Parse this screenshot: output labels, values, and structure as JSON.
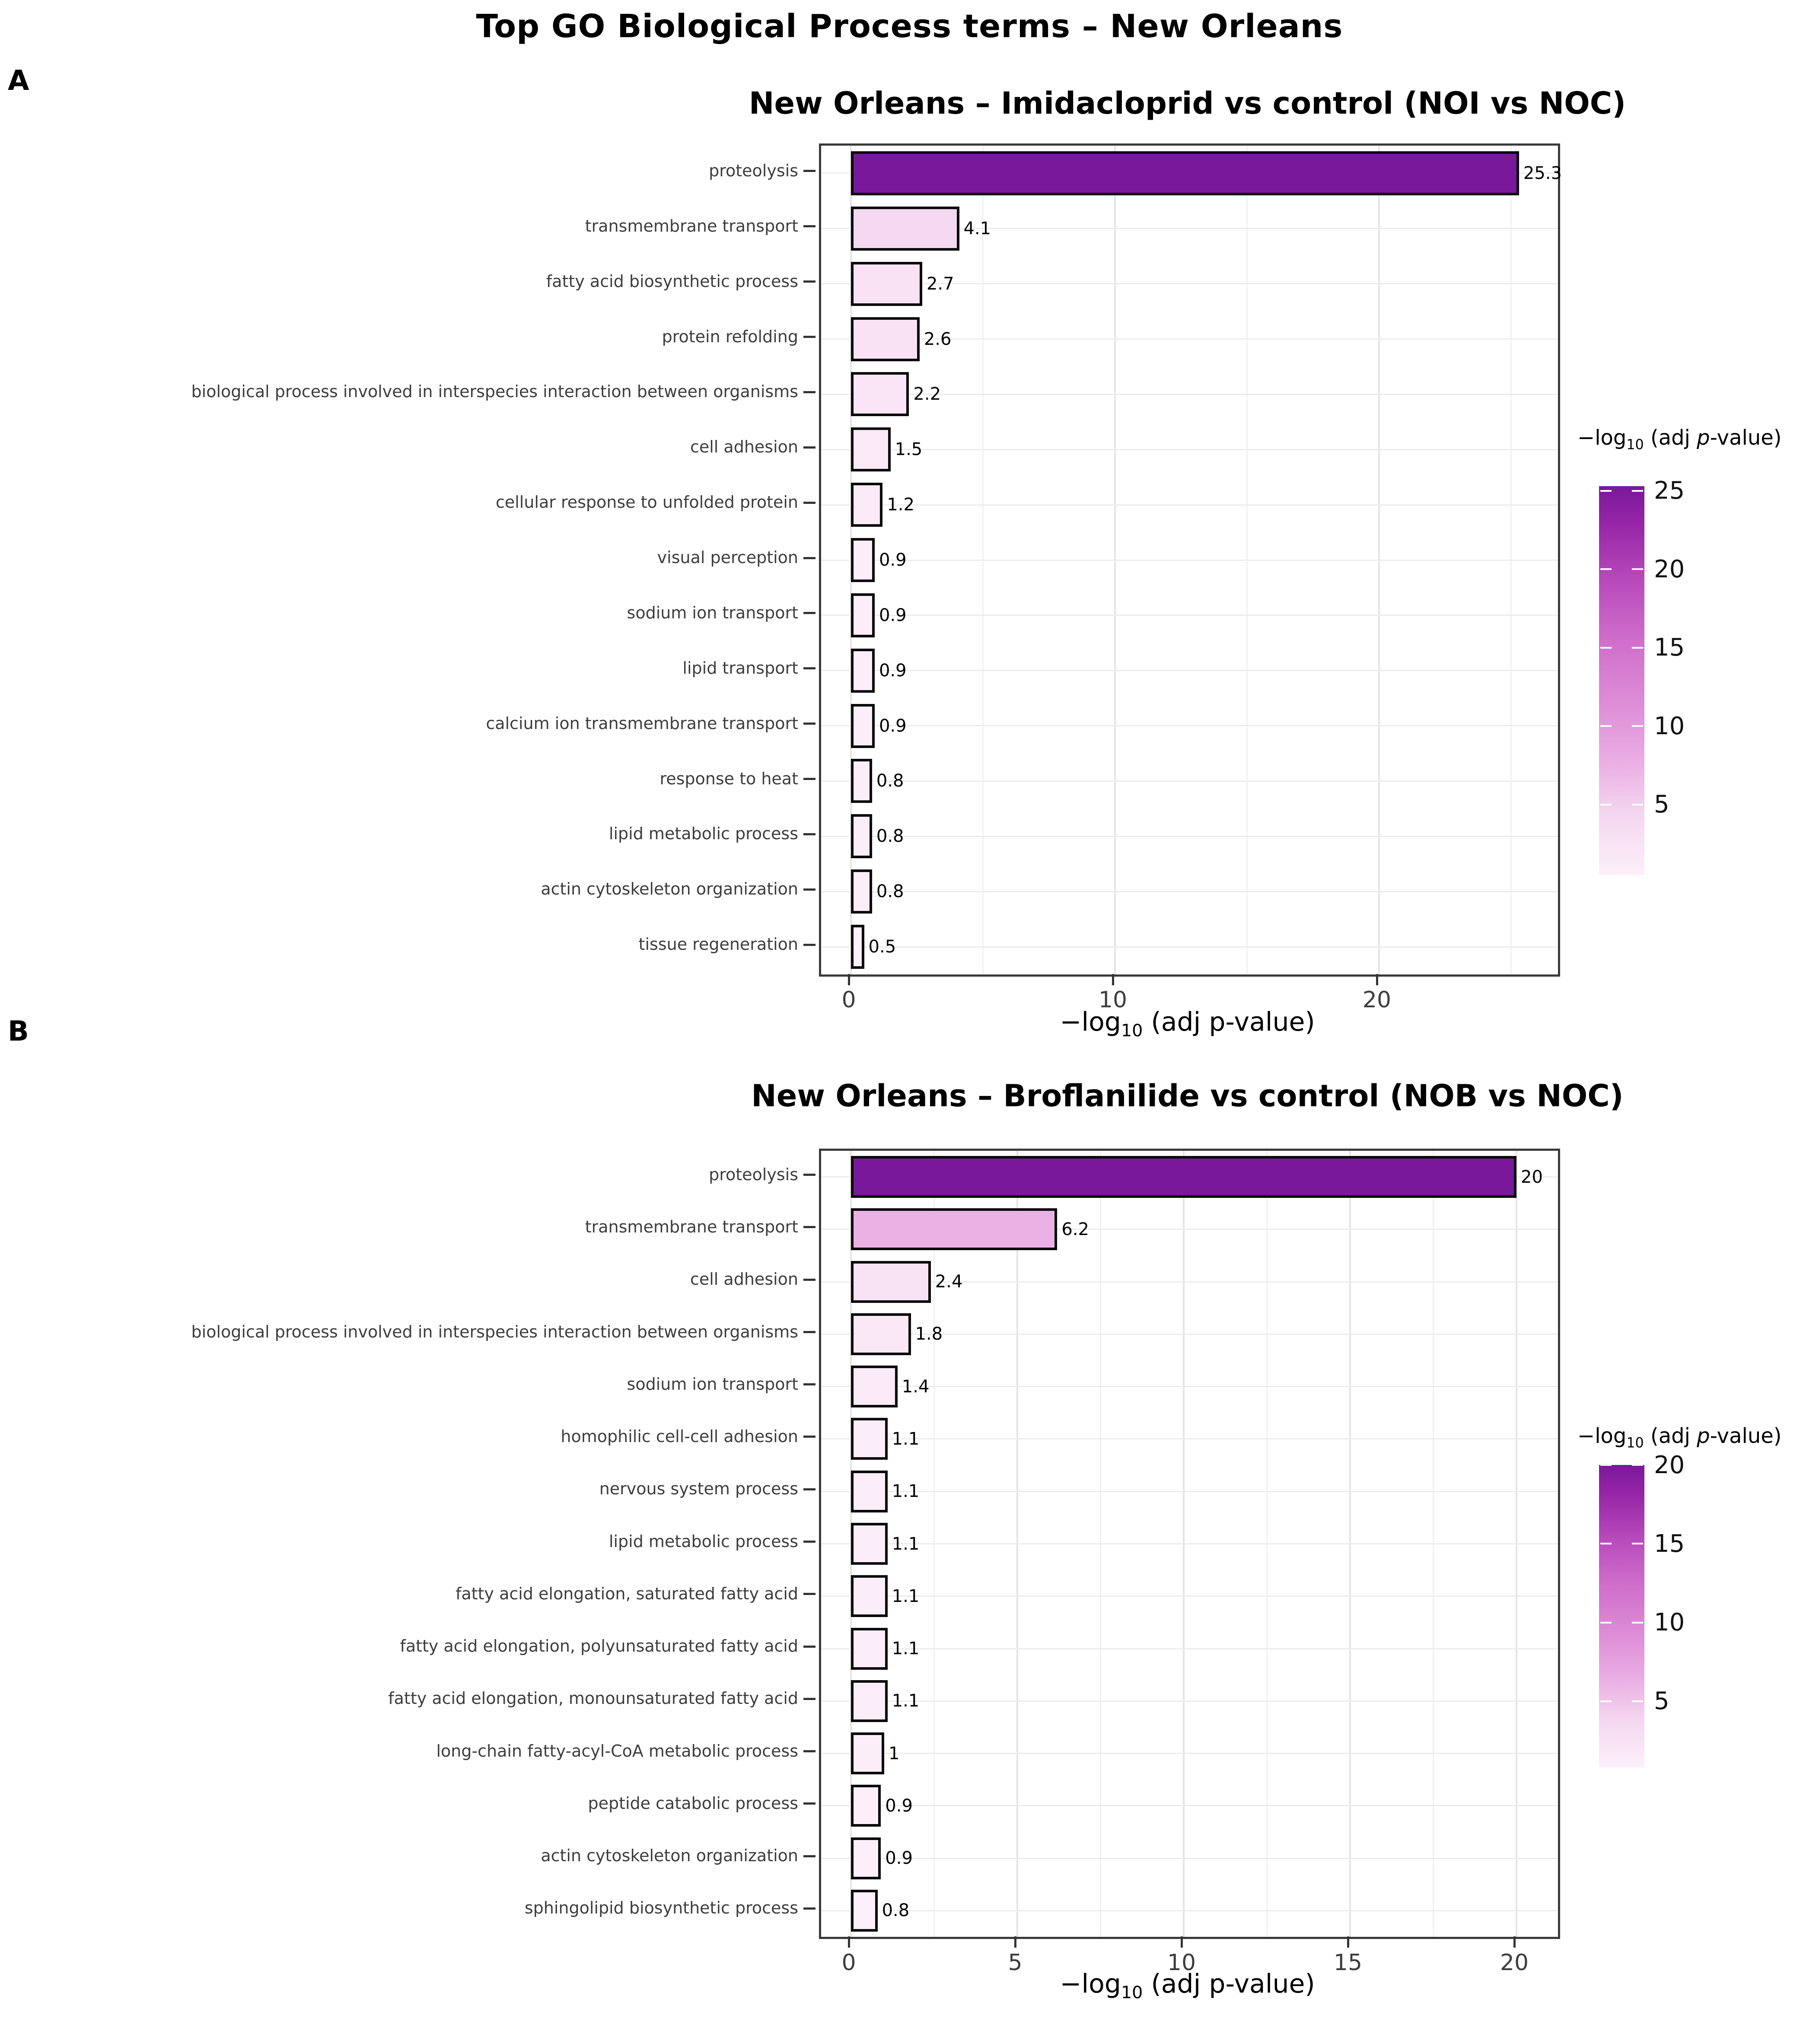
{
  "figure_title": "Top GO Biological Process terms – New Orleans",
  "axis_label_parts": {
    "prefix": "−log",
    "sub": "10",
    "suffix": " (adj p-value)"
  },
  "legend_title_parts": {
    "prefix": "−log",
    "sub": "10",
    "mid": " (adj ",
    "p_italic": "p",
    "suffix": "-value)"
  },
  "colors": {
    "bar_outline": "#0a0a0a",
    "panel_border": "#3a3a3a",
    "axis_text": "#3d3d3d",
    "grid_major": "#e4e4e4",
    "grid_minor": "#f1f1f1",
    "grid_row": "#ececec",
    "gradient_stops": [
      [
        0.0,
        "#FCF0FA"
      ],
      [
        0.15,
        "#F5D8F0"
      ],
      [
        0.3,
        "#E9ACE3"
      ],
      [
        0.45,
        "#DD8BD6"
      ],
      [
        0.6,
        "#CF6FCB"
      ],
      [
        0.75,
        "#B94CBC"
      ],
      [
        0.9,
        "#9826A7"
      ],
      [
        1.0,
        "#7A189B"
      ]
    ]
  },
  "chart_data": [
    {
      "type": "bar",
      "orientation": "horizontal",
      "panel_label": "A",
      "title": "New Orleans – Imidacloprid vs control (NOI vs NOC)",
      "categories": [
        "proteolysis",
        "transmembrane transport",
        "fatty acid biosynthetic process",
        "protein refolding",
        "biological process involved in interspecies interaction between organisms",
        "cell adhesion",
        "cellular response to unfolded protein",
        "visual perception",
        "sodium ion transport",
        "lipid transport",
        "calcium ion transmembrane transport",
        "response to heat",
        "lipid metabolic process",
        "actin cytoskeleton organization",
        "tissue regeneration"
      ],
      "values": [
        25.3,
        4.1,
        2.7,
        2.6,
        2.2,
        1.5,
        1.2,
        0.9,
        0.9,
        0.9,
        0.9,
        0.8,
        0.8,
        0.8,
        0.5
      ],
      "value_labels": [
        "25.3",
        "4.1",
        "2.7",
        "2.6",
        "2.2",
        "1.5",
        "1.2",
        "0.9",
        "0.9",
        "0.9",
        "0.9",
        "0.8",
        "0.8",
        "0.8",
        "0.5"
      ],
      "xlabel": "−log10 (adj p-value)",
      "xlim": [
        0,
        26.8
      ],
      "x_ticks": [
        0,
        10,
        20
      ],
      "x_minor_ticks": [
        5,
        15,
        25
      ],
      "grid": true,
      "legend_position": "right",
      "colorbar": {
        "label": "−log10 (adj p-value)",
        "min": 0.5,
        "max": 25.3,
        "ticks": [
          25,
          20,
          15,
          10,
          5
        ]
      }
    },
    {
      "type": "bar",
      "orientation": "horizontal",
      "panel_label": "B",
      "title": "New Orleans – Broflanilide vs control (NOB vs NOC)",
      "categories": [
        "proteolysis",
        "transmembrane transport",
        "cell adhesion",
        "biological process involved in interspecies interaction between organisms",
        "sodium ion transport",
        "homophilic cell-cell adhesion",
        "nervous system process",
        "lipid metabolic process",
        "fatty acid elongation, saturated fatty acid",
        "fatty acid elongation, polyunsaturated fatty acid",
        "fatty acid elongation, monounsaturated fatty acid",
        "long-chain fatty-acyl-CoA metabolic process",
        "peptide catabolic process",
        "actin cytoskeleton organization",
        "sphingolipid biosynthetic process"
      ],
      "values": [
        20,
        6.2,
        2.4,
        1.8,
        1.4,
        1.1,
        1.1,
        1.1,
        1.1,
        1.1,
        1.1,
        1,
        0.9,
        0.9,
        0.8
      ],
      "value_labels": [
        "20",
        "6.2",
        "2.4",
        "1.8",
        "1.4",
        "1.1",
        "1.1",
        "1.1",
        "1.1",
        "1.1",
        "1.1",
        "1",
        "0.9",
        "0.9",
        "0.8"
      ],
      "xlabel": "−log10 (adj p-value)",
      "xlim": [
        0,
        21.3
      ],
      "x_ticks": [
        0,
        5,
        10,
        15,
        20
      ],
      "x_minor_ticks": [
        2.5,
        7.5,
        12.5,
        17.5
      ],
      "grid": true,
      "legend_position": "right",
      "colorbar": {
        "label": "−log10 (adj p-value)",
        "min": 0.8,
        "max": 20,
        "ticks": [
          20,
          15,
          10,
          5
        ]
      }
    }
  ]
}
